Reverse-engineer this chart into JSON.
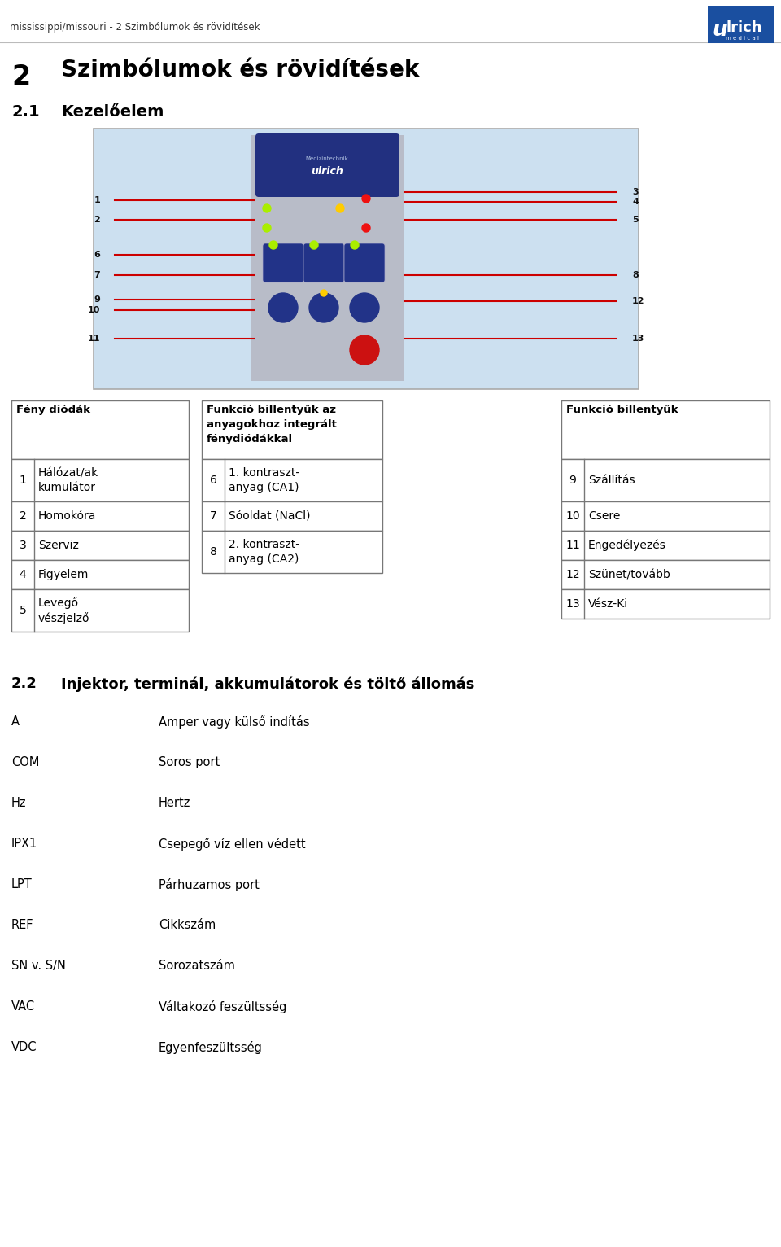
{
  "page_title": "mississippi/missouri - 2 Szimbólumok és rövidítések",
  "section_number": "2",
  "section_title": "Szimbólumok és rövidítések",
  "subsection_number": "2.1",
  "subsection_title": "Kezelőelem",
  "subsection2_number": "2.2",
  "subsection2_title": "Injektor, terminál, akkumulátorok és töltő állomás",
  "table1_header": "Fény diódák",
  "table1_rows": [
    [
      "1",
      "Hálózat/ak\nkumulátor"
    ],
    [
      "2",
      "Homokóra"
    ],
    [
      "3",
      "Szerviz"
    ],
    [
      "4",
      "Figyelem"
    ],
    [
      "5",
      "Levegő\nvészjelző"
    ]
  ],
  "table2_header": "Funkció billentyűk az\nanyagokhoz integrált\nfénydiódákkal",
  "table2_rows": [
    [
      "6",
      "1. kontraszt-\nanyag (CA1)"
    ],
    [
      "7",
      "Sóoldat (NaCl)"
    ],
    [
      "8",
      "2. kontraszt-\nanyag (CA2)"
    ]
  ],
  "table3_header": "Funkció billentyűk",
  "table3_rows": [
    [
      "9",
      "Szállítás"
    ],
    [
      "10",
      "Csere"
    ],
    [
      "11",
      "Engedélyezés"
    ],
    [
      "12",
      "Szünet/tovább"
    ],
    [
      "13",
      "Vész-Ki"
    ]
  ],
  "abbrev_rows": [
    [
      "A",
      "Amper vagy külső indítás"
    ],
    [
      "COM",
      "Soros port"
    ],
    [
      "Hz",
      "Hertz"
    ],
    [
      "IPX1",
      "Csepegő víz ellen védett"
    ],
    [
      "LPT",
      "Párhuzamos port"
    ],
    [
      "REF",
      "Cikkszám"
    ],
    [
      "SN v. S/N",
      "Sorozatszám"
    ],
    [
      "VAC",
      "Váltakozó feszültsség"
    ],
    [
      "VDC",
      "Egyenfeszültsség"
    ]
  ],
  "bg_color": "#ffffff",
  "table_border_color": "#777777",
  "title_color": "#000000",
  "logo_blue": "#1a4fa0",
  "image_bg": "#cce0f0",
  "device_gray": "#c0c4cc",
  "device_blue": "#223388"
}
